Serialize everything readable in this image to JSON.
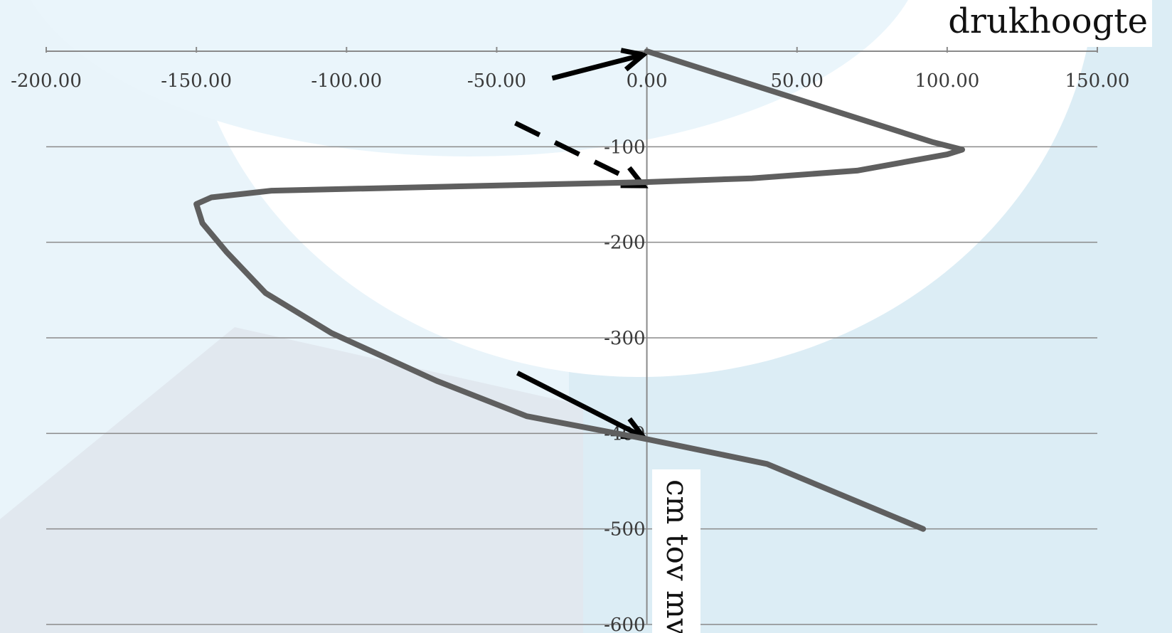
{
  "chart_data": {
    "type": "line",
    "title": "drukhoogte",
    "xlabel": "",
    "ylabel": "cm tov mv",
    "xlim": [
      -200,
      150
    ],
    "ylim": [
      -600,
      0
    ],
    "x_ticks": [
      "-200.00",
      "-150.00",
      "-100.00",
      "-50.00",
      "0.00",
      "50.00",
      "100.00",
      "150.00"
    ],
    "y_ticks": [
      "-100",
      "-200",
      "-300",
      "-400",
      "-500",
      "-600"
    ],
    "grid": true,
    "legend": "none",
    "series": [
      {
        "color": "#5f5f5f",
        "points": [
          [
            0,
            0
          ],
          [
            95,
            -95
          ],
          [
            105,
            -103
          ],
          [
            100,
            -108
          ],
          [
            70,
            -125
          ],
          [
            35,
            -133
          ],
          [
            0,
            -137
          ],
          [
            -125,
            -146
          ],
          [
            -145,
            -153
          ],
          [
            -150,
            -160
          ],
          [
            -148,
            -180
          ],
          [
            -140,
            -210
          ],
          [
            -127,
            -253
          ],
          [
            -105,
            -295
          ],
          [
            -70,
            -345
          ],
          [
            -40,
            -382
          ],
          [
            0,
            -406
          ],
          [
            40,
            -432
          ],
          [
            92,
            -500
          ]
        ]
      }
    ],
    "annotations": [
      {
        "type": "arrow",
        "style": "solid",
        "points_to": [
          0,
          0
        ]
      },
      {
        "type": "arrow",
        "style": "dashed",
        "points_to": [
          0,
          -137
        ]
      },
      {
        "type": "arrow",
        "style": "solid",
        "points_to": [
          0,
          -400
        ]
      }
    ]
  }
}
